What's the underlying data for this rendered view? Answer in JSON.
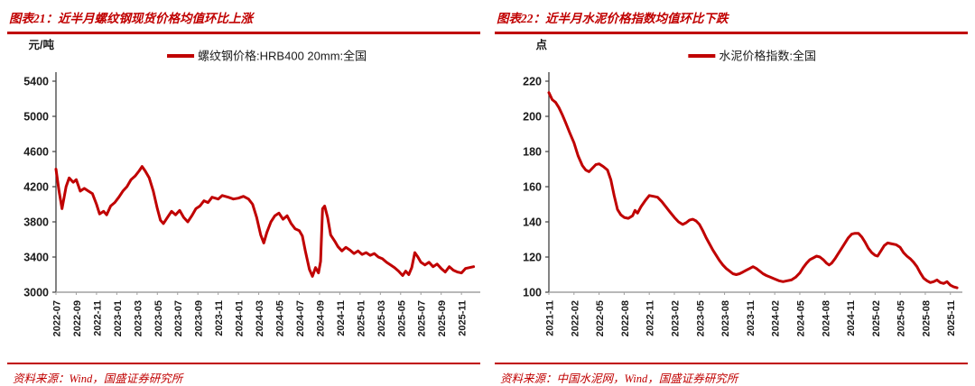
{
  "accent_color": "#c00000",
  "axis_color": "#404040",
  "x_axis_color": "#a0a0a0",
  "tick_label_color": "#1a1a1a",
  "chart_data": [
    {
      "type": "line",
      "title": "图表21：近半月螺纹钢现货价格均值环比上涨",
      "unit_label": "元/吨",
      "legend": "螺纹钢价格:HRB400 20mm:全国",
      "line_color": "#c00000",
      "source": "资料来源：Wind，国盛证券研究所",
      "ylim": [
        3000,
        5400
      ],
      "yticks": [
        "3000",
        "3400",
        "3800",
        "4200",
        "4600",
        "5000",
        "5400"
      ],
      "x_tick_labels": [
        "2022-07",
        "2022-09",
        "2022-11",
        "2023-01",
        "2023-03",
        "2023-05",
        "2023-07",
        "2023-09",
        "2023-11",
        "2024-01",
        "2024-03",
        "2024-05",
        "2024-07",
        "2024-09",
        "2024-11",
        "2025-01",
        "2025-03",
        "2025-05",
        "2025-07",
        "2025-09",
        "2025-11"
      ],
      "x_tick_month_step": 2,
      "x_range_months": [
        0,
        41.5
      ],
      "grid": false,
      "legend_position": "top-center",
      "points": [
        [
          0,
          4400
        ],
        [
          0.3,
          4150
        ],
        [
          0.6,
          3950
        ],
        [
          1,
          4200
        ],
        [
          1.3,
          4300
        ],
        [
          1.7,
          4250
        ],
        [
          2,
          4280
        ],
        [
          2.4,
          4150
        ],
        [
          2.8,
          4180
        ],
        [
          3.2,
          4150
        ],
        [
          3.6,
          4120
        ],
        [
          4,
          4000
        ],
        [
          4.3,
          3890
        ],
        [
          4.7,
          3920
        ],
        [
          5,
          3880
        ],
        [
          5.4,
          3980
        ],
        [
          5.8,
          4020
        ],
        [
          6.2,
          4080
        ],
        [
          6.6,
          4150
        ],
        [
          7,
          4200
        ],
        [
          7.4,
          4280
        ],
        [
          7.8,
          4320
        ],
        [
          8.2,
          4380
        ],
        [
          8.5,
          4430
        ],
        [
          8.8,
          4380
        ],
        [
          9.2,
          4300
        ],
        [
          9.6,
          4150
        ],
        [
          10,
          3950
        ],
        [
          10.3,
          3820
        ],
        [
          10.6,
          3780
        ],
        [
          11,
          3850
        ],
        [
          11.4,
          3920
        ],
        [
          11.8,
          3880
        ],
        [
          12.2,
          3930
        ],
        [
          12.6,
          3850
        ],
        [
          13,
          3800
        ],
        [
          13.4,
          3870
        ],
        [
          13.8,
          3950
        ],
        [
          14.2,
          3980
        ],
        [
          14.6,
          4040
        ],
        [
          15,
          4020
        ],
        [
          15.4,
          4080
        ],
        [
          16,
          4060
        ],
        [
          16.4,
          4100
        ],
        [
          17,
          4080
        ],
        [
          17.5,
          4060
        ],
        [
          18,
          4070
        ],
        [
          18.5,
          4090
        ],
        [
          19,
          4060
        ],
        [
          19.4,
          4000
        ],
        [
          19.8,
          3850
        ],
        [
          20.2,
          3650
        ],
        [
          20.5,
          3560
        ],
        [
          20.8,
          3680
        ],
        [
          21.2,
          3800
        ],
        [
          21.6,
          3870
        ],
        [
          22,
          3900
        ],
        [
          22.4,
          3830
        ],
        [
          22.8,
          3870
        ],
        [
          23.2,
          3780
        ],
        [
          23.6,
          3720
        ],
        [
          24,
          3700
        ],
        [
          24.3,
          3640
        ],
        [
          24.6,
          3470
        ],
        [
          25,
          3260
        ],
        [
          25.3,
          3180
        ],
        [
          25.6,
          3280
        ],
        [
          25.9,
          3220
        ],
        [
          26.1,
          3350
        ],
        [
          26.3,
          3950
        ],
        [
          26.5,
          3980
        ],
        [
          26.8,
          3850
        ],
        [
          27.1,
          3650
        ],
        [
          27.5,
          3580
        ],
        [
          27.8,
          3520
        ],
        [
          28.2,
          3470
        ],
        [
          28.6,
          3510
        ],
        [
          29,
          3480
        ],
        [
          29.4,
          3440
        ],
        [
          29.8,
          3470
        ],
        [
          30.2,
          3430
        ],
        [
          30.6,
          3450
        ],
        [
          31,
          3420
        ],
        [
          31.4,
          3440
        ],
        [
          31.8,
          3400
        ],
        [
          32.2,
          3380
        ],
        [
          32.6,
          3340
        ],
        [
          33,
          3310
        ],
        [
          33.4,
          3280
        ],
        [
          33.8,
          3240
        ],
        [
          34.2,
          3190
        ],
        [
          34.5,
          3240
        ],
        [
          34.8,
          3200
        ],
        [
          35.1,
          3280
        ],
        [
          35.4,
          3450
        ],
        [
          35.7,
          3400
        ],
        [
          36,
          3340
        ],
        [
          36.4,
          3310
        ],
        [
          36.8,
          3340
        ],
        [
          37.2,
          3290
        ],
        [
          37.6,
          3320
        ],
        [
          38,
          3270
        ],
        [
          38.4,
          3230
        ],
        [
          38.8,
          3290
        ],
        [
          39.2,
          3250
        ],
        [
          39.6,
          3230
        ],
        [
          40,
          3220
        ],
        [
          40.4,
          3270
        ],
        [
          40.8,
          3280
        ],
        [
          41.2,
          3290
        ]
      ]
    },
    {
      "type": "line",
      "title": "图表22：近半月水泥价格指数均值环比下跌",
      "unit_label": "点",
      "legend": "水泥价格指数:全国",
      "line_color": "#c00000",
      "source": "资料来源：中国水泥网，Wind，国盛证券研究所",
      "ylim": [
        100,
        220
      ],
      "yticks": [
        "100",
        "120",
        "140",
        "160",
        "180",
        "200",
        "220"
      ],
      "x_tick_labels": [
        "2021-11",
        "2022-02",
        "2022-05",
        "2022-08",
        "2022-11",
        "2023-02",
        "2023-05",
        "2023-08",
        "2023-11",
        "2024-02",
        "2024-05",
        "2024-08",
        "2024-11",
        "2025-02",
        "2025-05",
        "2025-08",
        "2025-11"
      ],
      "x_tick_month_step": 3,
      "x_range_months": [
        0,
        49
      ],
      "grid": false,
      "legend_position": "top-center",
      "points": [
        [
          0,
          213.5
        ],
        [
          0.4,
          209.5
        ],
        [
          0.8,
          208
        ],
        [
          1.2,
          205
        ],
        [
          1.6,
          201
        ],
        [
          2,
          196.5
        ],
        [
          2.5,
          190.5
        ],
        [
          3,
          185
        ],
        [
          3.5,
          177.5
        ],
        [
          4,
          172
        ],
        [
          4.4,
          169.5
        ],
        [
          4.8,
          168.5
        ],
        [
          5.2,
          170.5
        ],
        [
          5.6,
          172.5
        ],
        [
          6,
          173
        ],
        [
          6.5,
          171.5
        ],
        [
          7,
          169.5
        ],
        [
          7.4,
          164
        ],
        [
          7.8,
          155
        ],
        [
          8.2,
          147
        ],
        [
          8.6,
          144
        ],
        [
          9,
          142.5
        ],
        [
          9.5,
          142
        ],
        [
          10,
          143.5
        ],
        [
          10.3,
          146.5
        ],
        [
          10.6,
          145
        ],
        [
          11,
          148.5
        ],
        [
          11.5,
          152
        ],
        [
          12,
          155
        ],
        [
          12.5,
          154.5
        ],
        [
          13,
          154
        ],
        [
          13.5,
          151.5
        ],
        [
          14,
          148.5
        ],
        [
          14.5,
          145.5
        ],
        [
          15,
          142.5
        ],
        [
          15.5,
          140
        ],
        [
          16,
          138.5
        ],
        [
          16.4,
          139.5
        ],
        [
          16.8,
          141
        ],
        [
          17.2,
          141.5
        ],
        [
          17.6,
          140.5
        ],
        [
          18,
          138.5
        ],
        [
          18.4,
          135
        ],
        [
          18.8,
          131
        ],
        [
          19.2,
          127.5
        ],
        [
          19.6,
          124
        ],
        [
          20,
          121
        ],
        [
          20.4,
          118
        ],
        [
          20.8,
          115.5
        ],
        [
          21.2,
          113.5
        ],
        [
          21.6,
          112
        ],
        [
          22,
          110.5
        ],
        [
          22.4,
          110
        ],
        [
          22.8,
          110.5
        ],
        [
          23.2,
          111.5
        ],
        [
          23.6,
          112.5
        ],
        [
          24,
          113.5
        ],
        [
          24.4,
          114.5
        ],
        [
          24.8,
          113.5
        ],
        [
          25.2,
          112
        ],
        [
          25.6,
          110.5
        ],
        [
          26,
          109.5
        ],
        [
          26.5,
          108.5
        ],
        [
          27,
          107.5
        ],
        [
          27.5,
          106.5
        ],
        [
          28,
          106
        ],
        [
          28.5,
          106.5
        ],
        [
          29,
          107
        ],
        [
          29.5,
          108.5
        ],
        [
          30,
          111
        ],
        [
          30.4,
          114
        ],
        [
          30.8,
          116.5
        ],
        [
          31.2,
          118.5
        ],
        [
          31.6,
          119.5
        ],
        [
          32,
          120.5
        ],
        [
          32.4,
          120
        ],
        [
          32.8,
          118.5
        ],
        [
          33.2,
          116.5
        ],
        [
          33.5,
          115.5
        ],
        [
          33.8,
          116.5
        ],
        [
          34.2,
          119
        ],
        [
          34.6,
          122
        ],
        [
          35,
          125
        ],
        [
          35.4,
          128
        ],
        [
          35.8,
          131
        ],
        [
          36.2,
          133
        ],
        [
          36.6,
          133.5
        ],
        [
          37,
          133.5
        ],
        [
          37.4,
          131.5
        ],
        [
          37.8,
          128.5
        ],
        [
          38.2,
          125
        ],
        [
          38.6,
          122.5
        ],
        [
          39,
          121
        ],
        [
          39.3,
          120.5
        ],
        [
          39.7,
          123.5
        ],
        [
          40.1,
          126.5
        ],
        [
          40.5,
          128
        ],
        [
          41,
          127.5
        ],
        [
          41.5,
          127
        ],
        [
          42,
          125.5
        ],
        [
          42.4,
          122.5
        ],
        [
          42.8,
          120.5
        ],
        [
          43.2,
          119
        ],
        [
          43.6,
          117
        ],
        [
          44,
          114.5
        ],
        [
          44.4,
          111
        ],
        [
          44.8,
          108
        ],
        [
          45.2,
          106.5
        ],
        [
          45.6,
          105.5
        ],
        [
          46,
          106
        ],
        [
          46.4,
          107
        ],
        [
          46.8,
          105.5
        ],
        [
          47.2,
          105
        ],
        [
          47.6,
          106
        ],
        [
          48,
          104
        ],
        [
          48.4,
          103
        ],
        [
          48.8,
          102.5
        ]
      ]
    }
  ]
}
